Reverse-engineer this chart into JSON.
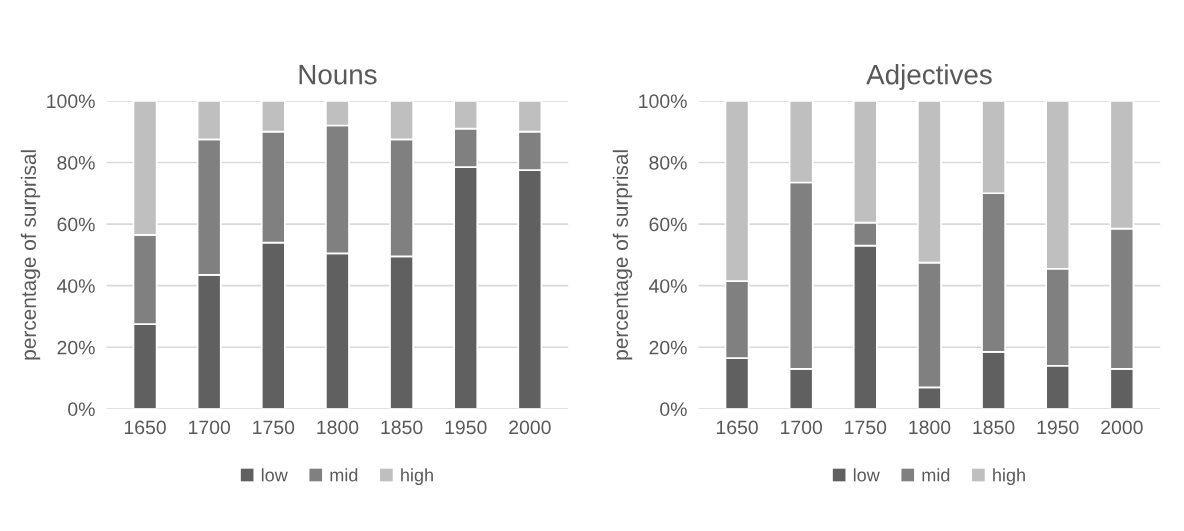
{
  "chart_data": [
    {
      "type": "bar",
      "title": "Nouns",
      "ylabel": "percentage of surprisal",
      "stacked": true,
      "categories": [
        "1650",
        "1700",
        "1750",
        "1800",
        "1850",
        "1950",
        "2000"
      ],
      "series": [
        {
          "name": "low",
          "color": "#606060",
          "values": [
            27.5,
            43.5,
            54,
            50.5,
            49.5,
            78.5,
            77.5
          ]
        },
        {
          "name": "mid",
          "color": "#808080",
          "values": [
            29,
            44,
            36,
            41.5,
            38,
            12.5,
            12.5
          ]
        },
        {
          "name": "high",
          "color": "#bfbfbf",
          "values": [
            43.5,
            12.5,
            10,
            8,
            12.5,
            9,
            10
          ]
        }
      ],
      "ylim": [
        0,
        100
      ],
      "yticks": [
        {
          "value": 0,
          "label": "0%"
        },
        {
          "value": 20,
          "label": "20%"
        },
        {
          "value": 40,
          "label": "40%"
        },
        {
          "value": 60,
          "label": "60%"
        },
        {
          "value": 80,
          "label": "80%"
        },
        {
          "value": 100,
          "label": "100%"
        }
      ],
      "grid": "y",
      "legend": "bottom"
    },
    {
      "type": "bar",
      "title": "Adjectives",
      "ylabel": "percentage of surprisal",
      "stacked": true,
      "categories": [
        "1650",
        "1700",
        "1750",
        "1800",
        "1850",
        "1950",
        "2000"
      ],
      "series": [
        {
          "name": "low",
          "color": "#606060",
          "values": [
            16.5,
            13,
            53,
            7,
            18.5,
            14,
            13
          ]
        },
        {
          "name": "mid",
          "color": "#808080",
          "values": [
            25,
            60.5,
            7.5,
            40.5,
            51.5,
            31.5,
            45.5
          ]
        },
        {
          "name": "high",
          "color": "#bfbfbf",
          "values": [
            58.5,
            26.5,
            39.5,
            52.5,
            30,
            54.5,
            41.5
          ]
        }
      ],
      "ylim": [
        0,
        100
      ],
      "yticks": [
        {
          "value": 0,
          "label": "0%"
        },
        {
          "value": 20,
          "label": "20%"
        },
        {
          "value": 40,
          "label": "40%"
        },
        {
          "value": 60,
          "label": "60%"
        },
        {
          "value": 80,
          "label": "80%"
        },
        {
          "value": 100,
          "label": "100%"
        }
      ],
      "grid": "y",
      "legend": "bottom"
    }
  ]
}
